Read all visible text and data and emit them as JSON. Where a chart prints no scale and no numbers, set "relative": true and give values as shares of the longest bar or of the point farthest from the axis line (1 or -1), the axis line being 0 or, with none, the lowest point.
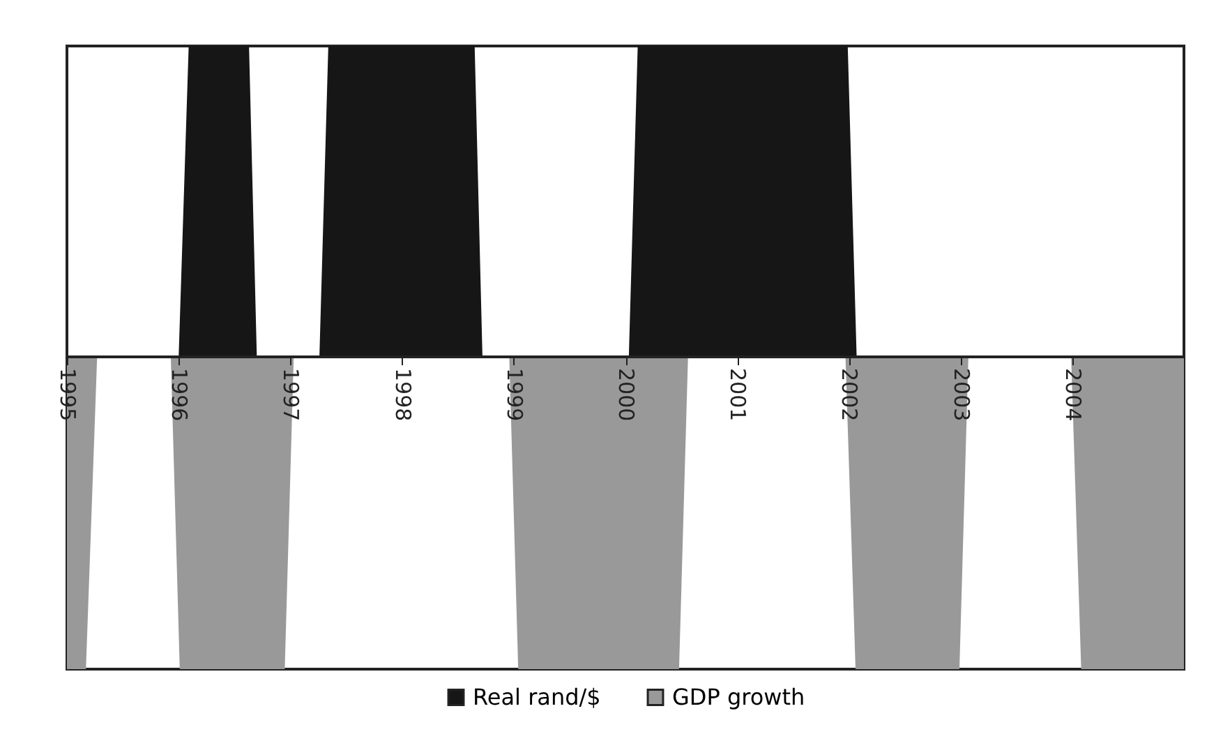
{
  "chart_data": {
    "type": "area",
    "relative": true,
    "legend": "bottom",
    "xlim": [
      1995,
      2005
    ],
    "xticks": [
      1995,
      1996,
      1997,
      1998,
      1999,
      2000,
      2001,
      2002,
      2003,
      2004
    ],
    "series": [
      {
        "name": "Real rand/$",
        "color": "#161616",
        "x": [
          1995,
          1996.0,
          1996.09,
          1996.63,
          1996.7,
          1997.26,
          1997.34,
          1998.65,
          1998.72,
          2000.03,
          2000.11,
          2001.99,
          2002.07,
          2005
        ],
        "values": [
          0,
          0,
          1,
          1,
          0,
          0,
          1,
          1,
          0,
          0,
          1,
          1,
          0,
          0
        ]
      },
      {
        "name": "GDP growth",
        "color": "#999999",
        "x": [
          1995,
          1995.17,
          1995.27,
          1995.93,
          1996.01,
          1996.95,
          1997.03,
          1998.96,
          1999.04,
          2000.48,
          2000.56,
          2001.97,
          2002.06,
          2002.99,
          2003.07,
          2003.99,
          2004.08,
          2005
        ],
        "values": [
          -1,
          -1,
          0,
          0,
          -1,
          -1,
          0,
          0,
          -1,
          -1,
          0,
          0,
          -1,
          -1,
          0,
          0,
          -1,
          -1
        ]
      }
    ]
  }
}
